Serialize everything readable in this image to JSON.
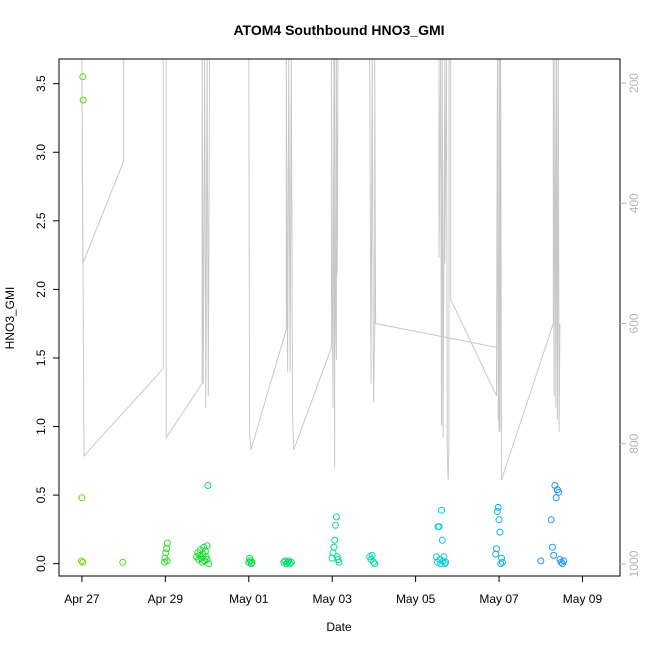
{
  "chart_data": {
    "type": "scatter",
    "title": "ATOM4 Southbound HNO3_GMI",
    "xlabel": "Date",
    "ylabel": "HNO3_GMI",
    "x_ticks": [
      "Apr 27",
      "Apr 29",
      "May 01",
      "May 03",
      "May 05",
      "May 07",
      "May 09"
    ],
    "y_ticks": [
      "0.0",
      "0.5",
      "1.0",
      "1.5",
      "2.0",
      "2.5",
      "3.0",
      "3.5"
    ],
    "y_right_ticks": [
      "200",
      "400",
      "600",
      "800",
      "1000"
    ],
    "xlim": [
      -0.55,
      12.9
    ],
    "ylim": [
      -0.09,
      3.68
    ],
    "y_right_lim": [
      1020,
      160
    ],
    "axis_color_right": "#b4b4b4",
    "pressure_color": "#c8c8c8",
    "point_color_scale": [
      "#66dd00",
      "#00dd44",
      "#00ddcc",
      "#1e90ff"
    ],
    "points": [
      {
        "x": 0.02,
        "y": 3.55
      },
      {
        "x": 0.03,
        "y": 3.38
      },
      {
        "x": 0.0,
        "y": 0.48
      },
      {
        "x": -0.01,
        "y": 0.02
      },
      {
        "x": 0.02,
        "y": 0.01
      },
      {
        "x": 0.98,
        "y": 0.01
      },
      {
        "x": 1.98,
        "y": 0.01
      },
      {
        "x": 1.99,
        "y": 0.04
      },
      {
        "x": 2.01,
        "y": 0.08
      },
      {
        "x": 2.03,
        "y": 0.11
      },
      {
        "x": 2.05,
        "y": 0.15
      },
      {
        "x": 2.04,
        "y": 0.02
      },
      {
        "x": 2.75,
        "y": 0.05
      },
      {
        "x": 2.78,
        "y": 0.08
      },
      {
        "x": 2.8,
        "y": 0.03
      },
      {
        "x": 2.82,
        "y": 0.06
      },
      {
        "x": 2.84,
        "y": 0.1
      },
      {
        "x": 2.86,
        "y": 0.04
      },
      {
        "x": 2.88,
        "y": 0.01
      },
      {
        "x": 2.9,
        "y": 0.07
      },
      {
        "x": 2.92,
        "y": 0.12
      },
      {
        "x": 2.94,
        "y": 0.02
      },
      {
        "x": 2.96,
        "y": 0.09
      },
      {
        "x": 2.98,
        "y": 0.05
      },
      {
        "x": 3.0,
        "y": 0.13
      },
      {
        "x": 3.02,
        "y": 0.57
      },
      {
        "x": 3.04,
        "y": 0.0
      },
      {
        "x": 3.0,
        "y": 0.03
      },
      {
        "x": 4.0,
        "y": 0.01
      },
      {
        "x": 4.02,
        "y": 0.04
      },
      {
        "x": 4.04,
        "y": 0.02
      },
      {
        "x": 4.06,
        "y": 0.0
      },
      {
        "x": 4.08,
        "y": 0.01
      },
      {
        "x": 4.84,
        "y": 0.01
      },
      {
        "x": 4.87,
        "y": 0.02
      },
      {
        "x": 4.9,
        "y": 0.0
      },
      {
        "x": 4.93,
        "y": 0.01
      },
      {
        "x": 4.96,
        "y": 0.02
      },
      {
        "x": 4.99,
        "y": 0.0
      },
      {
        "x": 5.02,
        "y": 0.01
      },
      {
        "x": 6.0,
        "y": 0.04
      },
      {
        "x": 6.02,
        "y": 0.08
      },
      {
        "x": 6.04,
        "y": 0.12
      },
      {
        "x": 6.06,
        "y": 0.17
      },
      {
        "x": 6.08,
        "y": 0.28
      },
      {
        "x": 6.1,
        "y": 0.34
      },
      {
        "x": 6.12,
        "y": 0.05
      },
      {
        "x": 6.14,
        "y": 0.03
      },
      {
        "x": 6.16,
        "y": 0.01
      },
      {
        "x": 6.9,
        "y": 0.05
      },
      {
        "x": 6.93,
        "y": 0.03
      },
      {
        "x": 6.96,
        "y": 0.06
      },
      {
        "x": 6.99,
        "y": 0.01
      },
      {
        "x": 7.02,
        "y": 0.0
      },
      {
        "x": 8.5,
        "y": 0.05
      },
      {
        "x": 8.52,
        "y": 0.01
      },
      {
        "x": 8.54,
        "y": 0.27
      },
      {
        "x": 8.56,
        "y": 0.27
      },
      {
        "x": 8.58,
        "y": 0.03
      },
      {
        "x": 8.6,
        "y": 0.0
      },
      {
        "x": 8.62,
        "y": 0.39
      },
      {
        "x": 8.64,
        "y": 0.17
      },
      {
        "x": 8.66,
        "y": 0.02
      },
      {
        "x": 8.68,
        "y": 0.05
      },
      {
        "x": 8.7,
        "y": 0.0
      },
      {
        "x": 8.72,
        "y": 0.01
      },
      {
        "x": 9.92,
        "y": 0.07
      },
      {
        "x": 9.94,
        "y": 0.11
      },
      {
        "x": 9.96,
        "y": 0.38
      },
      {
        "x": 9.98,
        "y": 0.41
      },
      {
        "x": 10.0,
        "y": 0.32
      },
      {
        "x": 10.02,
        "y": 0.23
      },
      {
        "x": 10.04,
        "y": 0.0
      },
      {
        "x": 10.06,
        "y": 0.04
      },
      {
        "x": 10.08,
        "y": 0.01
      },
      {
        "x": 11.0,
        "y": 0.02
      },
      {
        "x": 11.25,
        "y": 0.32
      },
      {
        "x": 11.28,
        "y": 0.12
      },
      {
        "x": 11.31,
        "y": 0.06
      },
      {
        "x": 11.34,
        "y": 0.57
      },
      {
        "x": 11.37,
        "y": 0.48
      },
      {
        "x": 11.4,
        "y": 0.54
      },
      {
        "x": 11.43,
        "y": 0.52
      },
      {
        "x": 11.46,
        "y": 0.03
      },
      {
        "x": 11.49,
        "y": 0.01
      },
      {
        "x": 11.52,
        "y": 0.0
      },
      {
        "x": 11.55,
        "y": 0.02
      }
    ],
    "pressure_track": [
      {
        "x": 0.0,
        "p": 160
      },
      {
        "x": 0.02,
        "p": 500
      },
      {
        "x": 1.0,
        "p": 330
      },
      {
        "x": 1.0,
        "p": 160
      },
      {
        "x": 0.0,
        "p": 160
      },
      {
        "x": 0.05,
        "p": 820
      },
      {
        "x": 1.95,
        "p": 675
      },
      {
        "x": 1.95,
        "p": 160
      },
      {
        "x": 2.02,
        "p": 160
      },
      {
        "x": 2.02,
        "p": 790
      },
      {
        "x": 2.88,
        "p": 700
      },
      {
        "x": 2.88,
        "p": 160
      },
      {
        "x": 2.91,
        "p": 700
      },
      {
        "x": 2.94,
        "p": 160
      },
      {
        "x": 2.97,
        "p": 740
      },
      {
        "x": 3.0,
        "p": 160
      },
      {
        "x": 3.03,
        "p": 720
      },
      {
        "x": 3.06,
        "p": 160
      },
      {
        "x": 3.06,
        "p": 160
      },
      {
        "x": 4.0,
        "p": 160
      },
      {
        "x": 4.02,
        "p": 780
      },
      {
        "x": 4.05,
        "p": 810
      },
      {
        "x": 4.9,
        "p": 610
      },
      {
        "x": 4.9,
        "p": 160
      },
      {
        "x": 4.93,
        "p": 680
      },
      {
        "x": 4.96,
        "p": 160
      },
      {
        "x": 4.99,
        "p": 680
      },
      {
        "x": 5.02,
        "p": 160
      },
      {
        "x": 5.05,
        "p": 760
      },
      {
        "x": 5.08,
        "p": 810
      },
      {
        "x": 5.98,
        "p": 640
      },
      {
        "x": 5.98,
        "p": 160
      },
      {
        "x": 6.0,
        "p": 490
      },
      {
        "x": 6.02,
        "p": 740
      },
      {
        "x": 6.04,
        "p": 160
      },
      {
        "x": 6.06,
        "p": 840
      },
      {
        "x": 6.06,
        "p": 160
      },
      {
        "x": 6.08,
        "p": 580
      },
      {
        "x": 6.1,
        "p": 660
      },
      {
        "x": 6.1,
        "p": 160
      },
      {
        "x": 6.12,
        "p": 520
      },
      {
        "x": 6.14,
        "p": 160
      },
      {
        "x": 6.14,
        "p": 160
      },
      {
        "x": 6.9,
        "p": 160
      },
      {
        "x": 6.93,
        "p": 700
      },
      {
        "x": 6.96,
        "p": 160
      },
      {
        "x": 6.99,
        "p": 730
      },
      {
        "x": 7.02,
        "p": 620
      },
      {
        "x": 7.02,
        "p": 160
      },
      {
        "x": 7.04,
        "p": 600
      },
      {
        "x": 9.98,
        "p": 640
      },
      {
        "x": 10.0,
        "p": 780
      },
      {
        "x": 10.0,
        "p": 160
      },
      {
        "x": 8.56,
        "p": 160
      },
      {
        "x": 8.56,
        "p": 490
      },
      {
        "x": 8.6,
        "p": 160
      },
      {
        "x": 8.62,
        "p": 770
      },
      {
        "x": 8.64,
        "p": 160
      },
      {
        "x": 8.66,
        "p": 790
      },
      {
        "x": 8.7,
        "p": 160
      },
      {
        "x": 8.7,
        "p": 500
      },
      {
        "x": 8.74,
        "p": 160
      },
      {
        "x": 8.76,
        "p": 820
      },
      {
        "x": 8.78,
        "p": 860
      },
      {
        "x": 8.8,
        "p": 790
      },
      {
        "x": 8.8,
        "p": 160
      },
      {
        "x": 8.84,
        "p": 160
      },
      {
        "x": 8.84,
        "p": 560
      },
      {
        "x": 9.94,
        "p": 720
      },
      {
        "x": 9.96,
        "p": 160
      },
      {
        "x": 9.98,
        "p": 760
      },
      {
        "x": 10.02,
        "p": 160
      },
      {
        "x": 10.02,
        "p": 780
      },
      {
        "x": 10.04,
        "p": 160
      },
      {
        "x": 10.06,
        "p": 860
      },
      {
        "x": 11.3,
        "p": 600
      },
      {
        "x": 11.3,
        "p": 160
      },
      {
        "x": 11.32,
        "p": 720
      },
      {
        "x": 11.34,
        "p": 160
      },
      {
        "x": 11.36,
        "p": 740
      },
      {
        "x": 11.38,
        "p": 160
      },
      {
        "x": 11.4,
        "p": 760
      },
      {
        "x": 11.42,
        "p": 160
      },
      {
        "x": 11.44,
        "p": 780
      },
      {
        "x": 11.46,
        "p": 600
      }
    ]
  }
}
